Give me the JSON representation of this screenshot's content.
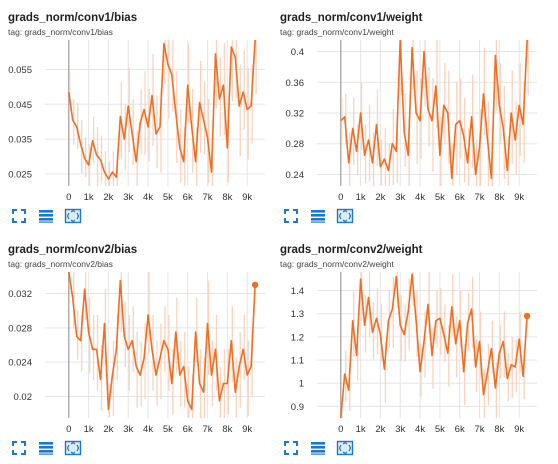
{
  "colors": {
    "smoothed": "#f26d22",
    "raw": "#fbd2bc",
    "grid": "#e6e6e6",
    "axis": "#9e9e9e",
    "icon": "#1e78c8"
  },
  "icons": [
    "fullscreen-icon",
    "toggle-log-scale-icon",
    "fit-domain-icon"
  ],
  "cards": [
    {
      "title": "grads_norm/conv1/bias",
      "tag": "tag: grads_norm/conv1/bias"
    },
    {
      "title": "grads_norm/conv1/weight",
      "tag": "tag: grads_norm/conv1/weight"
    },
    {
      "title": "grads_norm/conv2/bias",
      "tag": "tag: grads_norm/conv2/bias"
    },
    {
      "title": "grads_norm/conv2/weight",
      "tag": "tag: grads_norm/conv2/weight"
    }
  ],
  "chart_data": [
    {
      "type": "line",
      "title": "grads_norm/conv1/bias",
      "xlabel": "",
      "ylabel": "",
      "xlim": [
        -1200,
        9900
      ],
      "ylim": [
        0.0215,
        0.0635
      ],
      "x_ticks": [
        0,
        1000,
        2000,
        3000,
        4000,
        5000,
        6000,
        7000,
        8000,
        9000
      ],
      "x_tick_labels": [
        "0",
        "1k",
        "2k",
        "3k",
        "4k",
        "5k",
        "6k",
        "7k",
        "8k",
        "9k"
      ],
      "y_ticks": [
        0.025,
        0.035,
        0.045,
        0.055
      ],
      "y_tick_labels": [
        "0.025",
        "0.035",
        "0.045",
        "0.055"
      ],
      "grid": true,
      "series": [
        {
          "x": [
            0,
            200,
            400,
            600,
            800,
            1000,
            1200,
            1400,
            1600,
            1800,
            2000,
            2200,
            2400,
            2600,
            2800,
            3000,
            3200,
            3400,
            3600,
            3800,
            4000,
            4200,
            4400,
            4600,
            4800,
            5000,
            5200,
            5400,
            5600,
            5800,
            6000,
            6200,
            6400,
            6600,
            6800,
            7000,
            7200,
            7400,
            7600,
            7800,
            8000,
            8200,
            8400,
            8600,
            8800,
            9000,
            9200,
            9400
          ],
          "values": [
            0.0485,
            0.0405,
            0.0385,
            0.0335,
            0.0295,
            0.0275,
            0.0345,
            0.0305,
            0.029,
            0.0255,
            0.0235,
            0.0255,
            0.024,
            0.0415,
            0.035,
            0.0445,
            0.0365,
            0.0285,
            0.0395,
            0.0435,
            0.0385,
            0.0475,
            0.0365,
            0.0385,
            0.0625,
            0.0565,
            0.0535,
            0.0425,
            0.0325,
            0.0285,
            0.0505,
            0.0385,
            0.0285,
            0.0455,
            0.0405,
            0.0355,
            0.0255,
            0.0595,
            0.0465,
            0.0505,
            0.0325,
            0.0615,
            0.0585,
            0.0445,
            0.0485,
            0.0435,
            0.0445,
            0.0635
          ],
          "raw_band": [
            0.006,
            0.006,
            0.007,
            0.007,
            0.006,
            0.006,
            0.007,
            0.008,
            0.007,
            0.006,
            0.005,
            0.006,
            0.007,
            0.01,
            0.01,
            0.011,
            0.01,
            0.009,
            0.01,
            0.011,
            0.011,
            0.012,
            0.011,
            0.011,
            0.013,
            0.013,
            0.012,
            0.012,
            0.011,
            0.01,
            0.012,
            0.011,
            0.01,
            0.012,
            0.011,
            0.011,
            0.01,
            0.013,
            0.012,
            0.012,
            0.011,
            0.013,
            0.013,
            0.012,
            0.012,
            0.012,
            0.012,
            0.013
          ]
        }
      ],
      "end_marker": false
    },
    {
      "type": "line",
      "title": "grads_norm/conv1/weight",
      "xlabel": "",
      "ylabel": "",
      "xlim": [
        -1200,
        9900
      ],
      "ylim": [
        0.225,
        0.415
      ],
      "x_ticks": [
        0,
        1000,
        2000,
        3000,
        4000,
        5000,
        6000,
        7000,
        8000,
        9000
      ],
      "x_tick_labels": [
        "0",
        "1k",
        "2k",
        "3k",
        "4k",
        "5k",
        "6k",
        "7k",
        "8k",
        "9k"
      ],
      "y_ticks": [
        0.24,
        0.28,
        0.32,
        0.36,
        0.4
      ],
      "y_tick_labels": [
        "0.24",
        "0.28",
        "0.32",
        "0.36",
        "0.4"
      ],
      "grid": true,
      "series": [
        {
          "x": [
            0,
            200,
            400,
            600,
            800,
            1000,
            1200,
            1400,
            1600,
            1800,
            2000,
            2200,
            2400,
            2600,
            2800,
            3000,
            3200,
            3400,
            3600,
            3800,
            4000,
            4200,
            4400,
            4600,
            4800,
            5000,
            5200,
            5400,
            5600,
            5800,
            6000,
            6200,
            6400,
            6600,
            6800,
            7000,
            7200,
            7400,
            7600,
            7800,
            8000,
            8200,
            8400,
            8600,
            8800,
            9000,
            9200,
            9400
          ],
          "values": [
            0.31,
            0.315,
            0.255,
            0.3,
            0.27,
            0.32,
            0.265,
            0.285,
            0.255,
            0.305,
            0.25,
            0.26,
            0.245,
            0.28,
            0.27,
            0.415,
            0.295,
            0.265,
            0.405,
            0.32,
            0.31,
            0.4,
            0.325,
            0.31,
            0.355,
            0.265,
            0.33,
            0.32,
            0.235,
            0.305,
            0.31,
            0.29,
            0.255,
            0.315,
            0.24,
            0.275,
            0.345,
            0.285,
            0.235,
            0.395,
            0.33,
            0.3,
            0.245,
            0.32,
            0.285,
            0.33,
            0.305,
            0.415
          ],
          "raw_band": [
            0.03,
            0.03,
            0.04,
            0.04,
            0.035,
            0.04,
            0.04,
            0.045,
            0.04,
            0.045,
            0.035,
            0.04,
            0.035,
            0.045,
            0.045,
            0.06,
            0.05,
            0.045,
            0.06,
            0.055,
            0.055,
            0.06,
            0.055,
            0.055,
            0.06,
            0.05,
            0.055,
            0.055,
            0.045,
            0.055,
            0.055,
            0.05,
            0.045,
            0.055,
            0.045,
            0.05,
            0.06,
            0.05,
            0.045,
            0.06,
            0.055,
            0.055,
            0.045,
            0.055,
            0.05,
            0.055,
            0.055,
            0.06
          ]
        }
      ],
      "end_marker": false
    },
    {
      "type": "line",
      "title": "grads_norm/conv2/bias",
      "xlabel": "",
      "ylabel": "",
      "xlim": [
        -1200,
        9900
      ],
      "ylim": [
        0.0175,
        0.0345
      ],
      "x_ticks": [
        0,
        1000,
        2000,
        3000,
        4000,
        5000,
        6000,
        7000,
        8000,
        9000
      ],
      "x_tick_labels": [
        "0",
        "1k",
        "2k",
        "3k",
        "4k",
        "5k",
        "6k",
        "7k",
        "8k",
        "9k"
      ],
      "y_ticks": [
        0.02,
        0.024,
        0.028,
        0.032
      ],
      "y_tick_labels": [
        "0.02",
        "0.024",
        "0.028",
        "0.032"
      ],
      "grid": true,
      "series": [
        {
          "x": [
            0,
            200,
            400,
            600,
            800,
            1000,
            1200,
            1400,
            1600,
            1800,
            2000,
            2200,
            2400,
            2600,
            2800,
            3000,
            3200,
            3400,
            3600,
            3800,
            4000,
            4200,
            4400,
            4600,
            4800,
            5000,
            5200,
            5400,
            5600,
            5800,
            6000,
            6200,
            6400,
            6600,
            6800,
            7000,
            7200,
            7400,
            7600,
            7800,
            8000,
            8200,
            8400,
            8600,
            8800,
            9000,
            9200,
            9400
          ],
          "values": [
            0.0345,
            0.0315,
            0.027,
            0.0265,
            0.0325,
            0.0275,
            0.0255,
            0.0255,
            0.022,
            0.0285,
            0.0185,
            0.0225,
            0.0255,
            0.0335,
            0.027,
            0.0255,
            0.0265,
            0.0235,
            0.0225,
            0.0245,
            0.0295,
            0.0255,
            0.0225,
            0.0245,
            0.0265,
            0.0255,
            0.0215,
            0.0275,
            0.0225,
            0.0235,
            0.0195,
            0.0185,
            0.0275,
            0.0215,
            0.0205,
            0.0285,
            0.0225,
            0.0255,
            0.0195,
            0.0215,
            0.0215,
            0.0265,
            0.0205,
            0.0235,
            0.0255,
            0.0225,
            0.0235,
            0.033
          ],
          "raw_band": [
            0.003,
            0.003,
            0.003,
            0.003,
            0.004,
            0.004,
            0.004,
            0.004,
            0.004,
            0.004,
            0.003,
            0.004,
            0.004,
            0.005,
            0.004,
            0.004,
            0.004,
            0.004,
            0.004,
            0.004,
            0.005,
            0.004,
            0.004,
            0.004,
            0.004,
            0.004,
            0.004,
            0.004,
            0.004,
            0.004,
            0.004,
            0.004,
            0.004,
            0.004,
            0.004,
            0.005,
            0.004,
            0.004,
            0.004,
            0.004,
            0.004,
            0.004,
            0.004,
            0.004,
            0.004,
            0.004,
            0.004,
            0.0
          ]
        }
      ],
      "end_marker": true
    },
    {
      "type": "line",
      "title": "grads_norm/conv2/weight",
      "xlabel": "",
      "ylabel": "",
      "xlim": [
        -1200,
        9900
      ],
      "ylim": [
        0.85,
        1.48
      ],
      "x_ticks": [
        0,
        1000,
        2000,
        3000,
        4000,
        5000,
        6000,
        7000,
        8000,
        9000
      ],
      "x_tick_labels": [
        "0",
        "1k",
        "2k",
        "3k",
        "4k",
        "5k",
        "6k",
        "7k",
        "8k",
        "9k"
      ],
      "y_ticks": [
        0.9,
        1,
        1.1,
        1.2,
        1.3,
        1.4
      ],
      "y_tick_labels": [
        "0.9",
        "1",
        "1.1",
        "1.2",
        "1.3",
        "1.4"
      ],
      "grid": true,
      "series": [
        {
          "x": [
            0,
            200,
            400,
            600,
            800,
            1000,
            1200,
            1400,
            1600,
            1800,
            2000,
            2200,
            2400,
            2600,
            2800,
            3000,
            3200,
            3400,
            3600,
            3800,
            4000,
            4200,
            4400,
            4600,
            4800,
            5000,
            5200,
            5400,
            5600,
            5800,
            6000,
            6200,
            6400,
            6600,
            6800,
            7000,
            7200,
            7400,
            7600,
            7800,
            8000,
            8200,
            8400,
            8600,
            8800,
            9000,
            9200,
            9400
          ],
          "values": [
            0.85,
            1.04,
            0.97,
            1.27,
            1.12,
            1.45,
            1.25,
            1.37,
            1.22,
            1.28,
            1.21,
            1.06,
            1.27,
            1.32,
            1.46,
            1.25,
            1.21,
            1.31,
            1.47,
            1.27,
            1.05,
            1.18,
            1.34,
            1.12,
            1.27,
            1.28,
            1.21,
            1.13,
            1.33,
            1.17,
            1.27,
            1.05,
            1.26,
            1.32,
            1.07,
            1.18,
            0.95,
            1.05,
            1.15,
            0.98,
            1.13,
            1.18,
            1.02,
            1.08,
            1.07,
            1.19,
            1.03,
            1.29
          ],
          "raw_band": [
            0.08,
            0.1,
            0.1,
            0.13,
            0.12,
            0.15,
            0.13,
            0.14,
            0.13,
            0.13,
            0.13,
            0.12,
            0.13,
            0.14,
            0.15,
            0.13,
            0.13,
            0.14,
            0.15,
            0.13,
            0.12,
            0.13,
            0.14,
            0.12,
            0.13,
            0.13,
            0.13,
            0.12,
            0.14,
            0.12,
            0.13,
            0.12,
            0.13,
            0.14,
            0.12,
            0.13,
            0.11,
            0.12,
            0.12,
            0.11,
            0.12,
            0.13,
            0.11,
            0.12,
            0.12,
            0.12,
            0.11,
            0.0
          ]
        }
      ],
      "end_marker": true
    }
  ]
}
